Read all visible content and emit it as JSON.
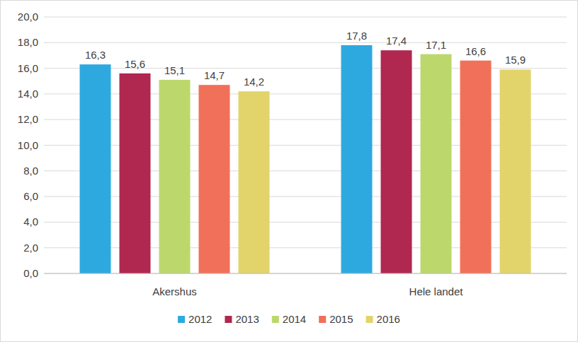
{
  "chart_data": {
    "type": "bar",
    "categories": [
      "Akershus",
      "Hele landet"
    ],
    "series": [
      {
        "name": "2012",
        "color": "#2ea9df",
        "values": [
          16.3,
          17.8
        ],
        "value_labels": [
          "16,3",
          "17,8"
        ]
      },
      {
        "name": "2013",
        "color": "#b0284f",
        "values": [
          15.6,
          17.4
        ],
        "value_labels": [
          "15,6",
          "17,4"
        ]
      },
      {
        "name": "2014",
        "color": "#bcd86c",
        "values": [
          15.1,
          17.1
        ],
        "value_labels": [
          "15,1",
          "17,1"
        ]
      },
      {
        "name": "2015",
        "color": "#f17059",
        "values": [
          14.7,
          16.6
        ],
        "value_labels": [
          "14,7",
          "16,6"
        ]
      },
      {
        "name": "2016",
        "color": "#e2d46a",
        "values": [
          14.2,
          15.9
        ],
        "value_labels": [
          "14,2",
          "15,9"
        ]
      }
    ],
    "ylim": [
      0,
      20
    ],
    "yticks": [
      {
        "value": 0,
        "label": "0,0"
      },
      {
        "value": 2,
        "label": "2,0"
      },
      {
        "value": 4,
        "label": "4,0"
      },
      {
        "value": 6,
        "label": "6,0"
      },
      {
        "value": 8,
        "label": "8,0"
      },
      {
        "value": 10,
        "label": "10,0"
      },
      {
        "value": 12,
        "label": "12,0"
      },
      {
        "value": 14,
        "label": "14,0"
      },
      {
        "value": 16,
        "label": "16,0"
      },
      {
        "value": 18,
        "label": "18,0"
      },
      {
        "value": 20,
        "label": "20,0"
      }
    ],
    "grid": true,
    "data_labels": true,
    "legend": "bottom"
  }
}
